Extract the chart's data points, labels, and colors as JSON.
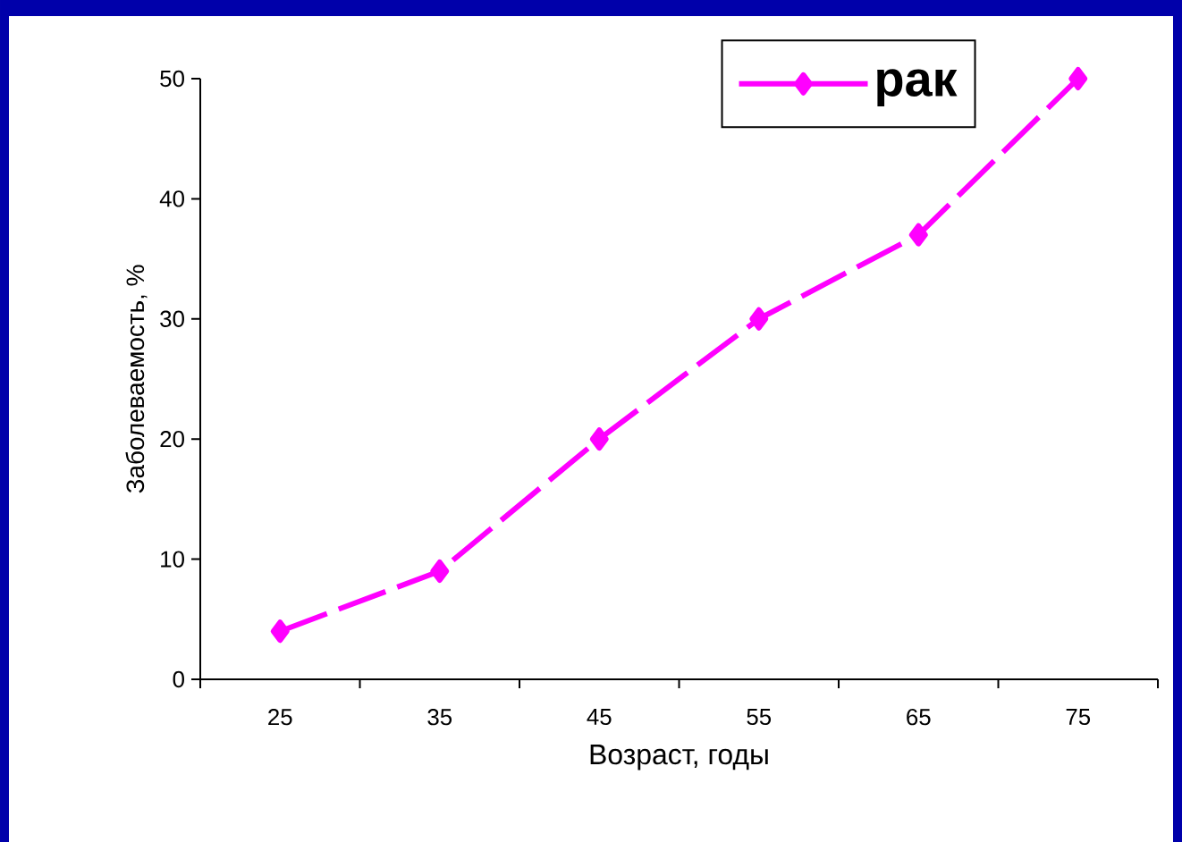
{
  "chart_data": {
    "type": "line",
    "xlabel": "Возраст, годы",
    "ylabel": "Заболеваемость, %",
    "categories": [
      "25",
      "35",
      "45",
      "55",
      "65",
      "75"
    ],
    "series": [
      {
        "name": "рак",
        "color": "#ff00ff",
        "values": [
          4,
          9,
          20,
          30,
          37,
          50
        ]
      }
    ],
    "ylim": [
      0,
      50
    ],
    "yticks": [
      0,
      10,
      20,
      30,
      40,
      50
    ],
    "grid": false,
    "legend": "top right",
    "marker": "diamond",
    "line_style": "dashed"
  }
}
